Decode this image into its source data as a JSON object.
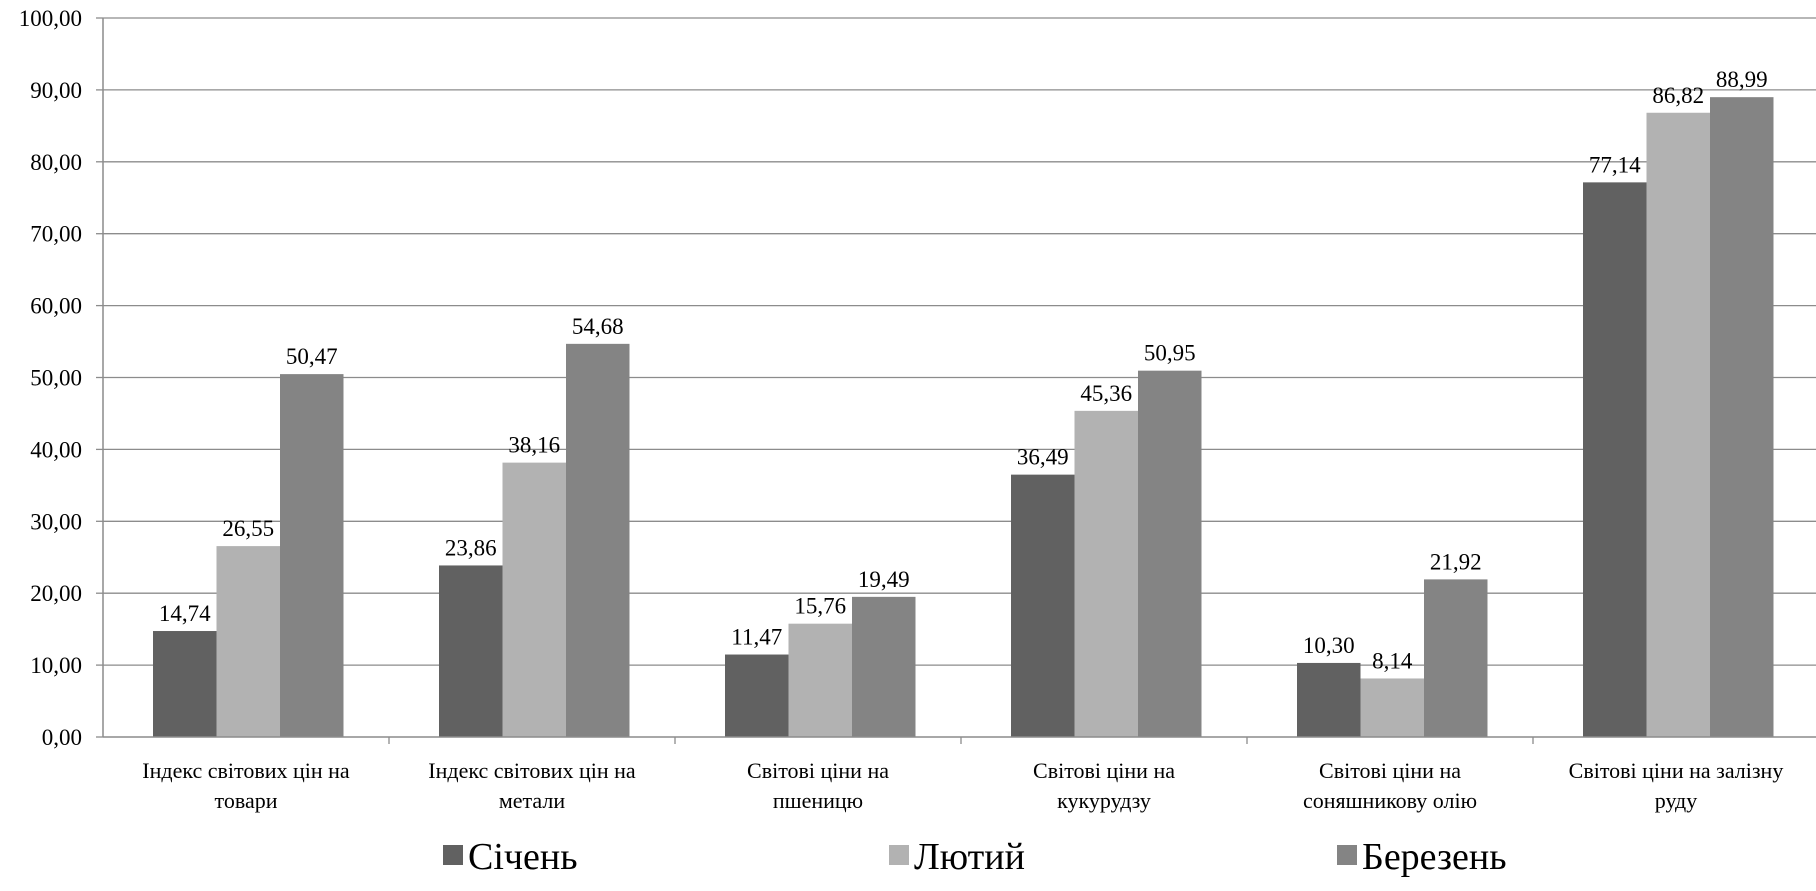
{
  "chart_data": {
    "type": "bar",
    "categories": [
      [
        "Індекс світових цін на",
        "товари"
      ],
      [
        "Індекс світових цін на",
        "метали"
      ],
      [
        "Світові ціни на",
        "пшеницю"
      ],
      [
        "Світові ціни на",
        "кукурудзу"
      ],
      [
        "Світові ціни на",
        "соняшникову олію"
      ],
      [
        "Світові ціни на залізну",
        "руду"
      ]
    ],
    "series": [
      {
        "name": "Січень",
        "color": "#616161",
        "values": [
          14.74,
          23.86,
          11.47,
          36.49,
          10.3,
          77.14
        ],
        "labels": [
          "14,74",
          "23,86",
          "11,47",
          "36,49",
          "10,30",
          "77,14"
        ]
      },
      {
        "name": "Лютий",
        "color": "#b2b2b2",
        "values": [
          26.55,
          38.16,
          15.76,
          45.36,
          8.14,
          86.82
        ],
        "labels": [
          "26,55",
          "38,16",
          "15,76",
          "45,36",
          "8,14",
          "86,82"
        ]
      },
      {
        "name": "Березень",
        "color": "#848484",
        "values": [
          50.47,
          54.68,
          19.49,
          50.95,
          21.92,
          88.99
        ],
        "labels": [
          "50,47",
          "54,68",
          "19,49",
          "50,95",
          "21,92",
          "88,99"
        ]
      }
    ],
    "ylim": [
      0,
      100
    ],
    "yticks": [
      "0,00",
      "10,00",
      "20,00",
      "30,00",
      "40,00",
      "50,00",
      "60,00",
      "70,00",
      "80,00",
      "90,00",
      "100,00"
    ],
    "grid": true,
    "legend": "bottom"
  }
}
